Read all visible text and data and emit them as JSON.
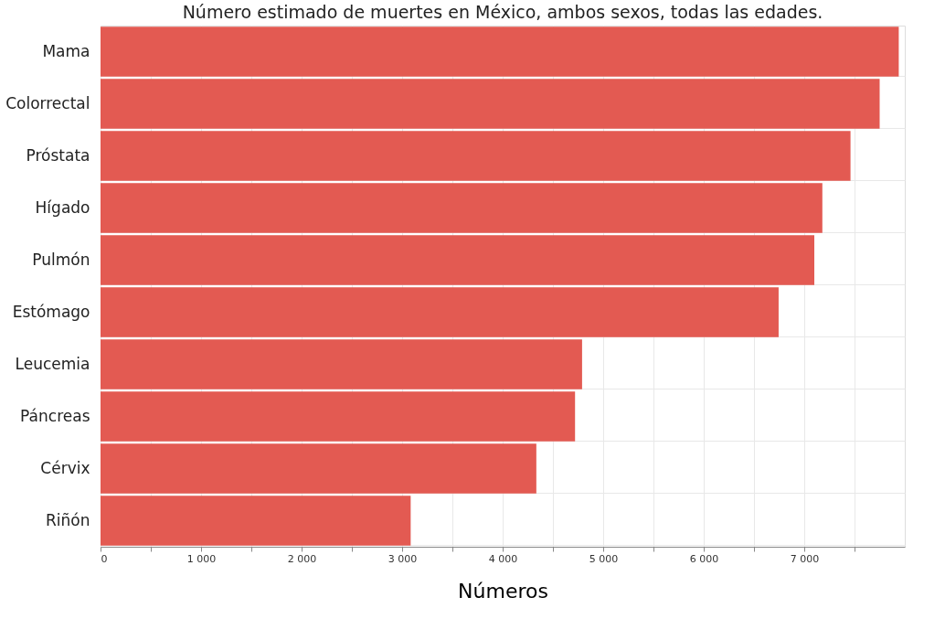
{
  "chart_data": {
    "type": "bar",
    "orientation": "horizontal",
    "title": "Número estimado de muertes en México, ambos sexos, todas las edades.",
    "xlabel": "Números",
    "categories": [
      "Mama",
      "Colorrectal",
      "Próstata",
      "Hígado",
      "Pulmón",
      "Estómago",
      "Leucemia",
      "Páncreas",
      "Cérvix",
      "Riñón"
    ],
    "values": [
      7940,
      7750,
      7460,
      7180,
      7100,
      6745,
      4790,
      4720,
      4335,
      3085
    ],
    "color": "#e35a52",
    "xlim": [
      0,
      8000
    ],
    "xticks": [
      0,
      {
        "value": 500,
        "label": null
      },
      {
        "value": 1000,
        "label": "1 000"
      },
      {
        "value": 1500,
        "label": null
      },
      {
        "value": 2000,
        "label": "2 000"
      },
      {
        "value": 2500,
        "label": null
      },
      {
        "value": 3000,
        "label": "3 000"
      },
      {
        "value": 3500,
        "label": null
      },
      {
        "value": 4000,
        "label": "4 000"
      },
      {
        "value": 4500,
        "label": null
      },
      {
        "value": 5000,
        "label": "5 000"
      },
      {
        "value": 5500,
        "label": null
      },
      {
        "value": 6000,
        "label": "6 000"
      },
      {
        "value": 6500,
        "label": null
      },
      {
        "value": 7000,
        "label": "7 000"
      },
      {
        "value": 7500,
        "label": null
      }
    ],
    "grid": true
  }
}
